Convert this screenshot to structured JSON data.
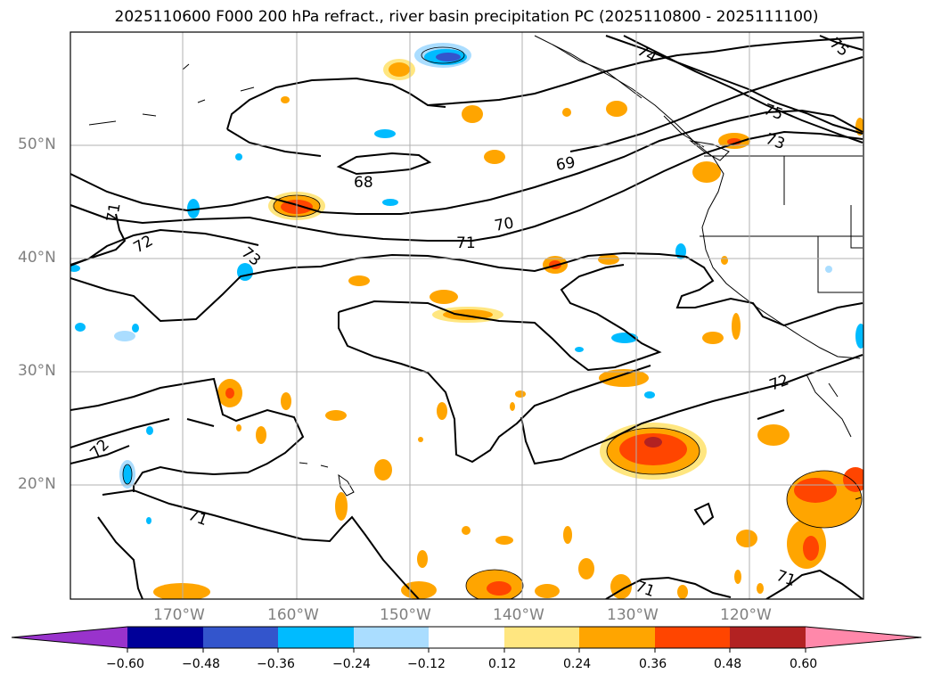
{
  "title": "2025110600 F000 200 hPa refract., river basin precipitation PC (2025110800 - 2025111100)",
  "axes": {
    "lat_labels": [
      "50°N",
      "40°N",
      "30°N",
      "20°N"
    ],
    "lon_labels": [
      "170°W",
      "160°W",
      "150°W",
      "140°W",
      "130°W",
      "120°W"
    ]
  },
  "contours": {
    "labels": [
      "74",
      "75",
      "75",
      "73",
      "68",
      "69",
      "70",
      "71",
      "71",
      "72",
      "73",
      "72",
      "72",
      "71",
      "71",
      "71"
    ]
  },
  "colorbar": {
    "ticks": [
      "−0.60",
      "−0.48",
      "−0.36",
      "−0.24",
      "−0.12",
      "0.12",
      "0.24",
      "0.36",
      "0.48",
      "0.60"
    ],
    "colors": [
      "#9933cc",
      "#000099",
      "#3355cc",
      "#00bbff",
      "#aaddff",
      "#ffffff",
      "#ffe680",
      "#ffa500",
      "#ff4500",
      "#b22222",
      "#ff88aa"
    ]
  },
  "colors": {
    "contour": "#000000",
    "grid": "#b0b0b0",
    "tick_label": "#808080"
  }
}
